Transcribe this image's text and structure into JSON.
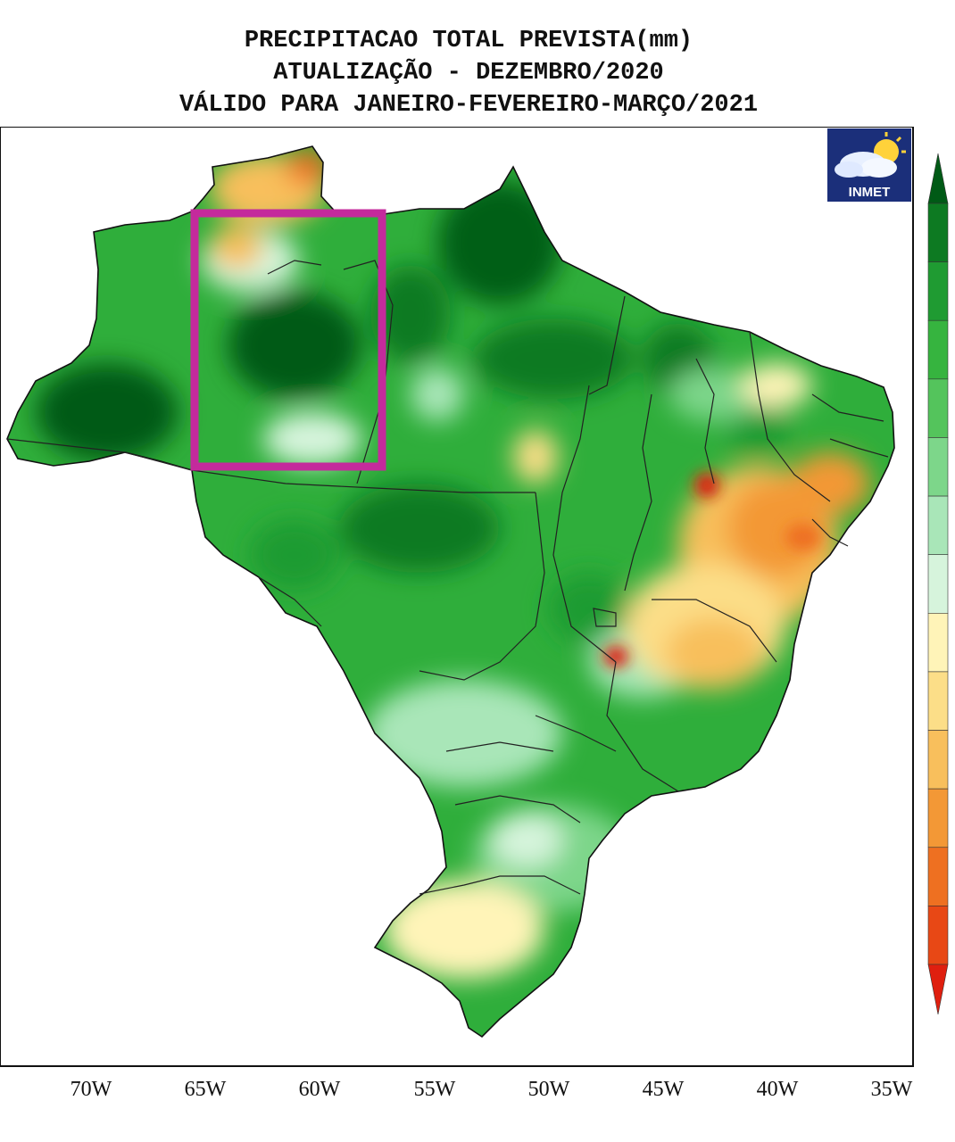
{
  "title": {
    "line1": "PRECIPITACAO TOTAL PREVISTA(mm)",
    "line2": "ATUALIZAÇÃO - DEZEMBRO/2020",
    "line3": "VÁLIDO PARA JANEIRO-FEVEREIRO-MARÇO/2021"
  },
  "logo": {
    "text": "INMET"
  },
  "longitude_labels": [
    "70W",
    "65W",
    "60W",
    "55W",
    "50W",
    "45W",
    "40W",
    "35W"
  ],
  "legend": {
    "colors": [
      "#005a16",
      "#0d7a22",
      "#1f9b32",
      "#36b43f",
      "#54c45c",
      "#7dd68a",
      "#a9e6b8",
      "#d6f4dc",
      "#fff4b8",
      "#fcde88",
      "#f8bf5c",
      "#f39836",
      "#ee7021",
      "#e84815",
      "#df1f0f"
    ]
  },
  "map": {
    "highlight_box_color": "#c42a9c",
    "map_background": "#ffffff"
  }
}
